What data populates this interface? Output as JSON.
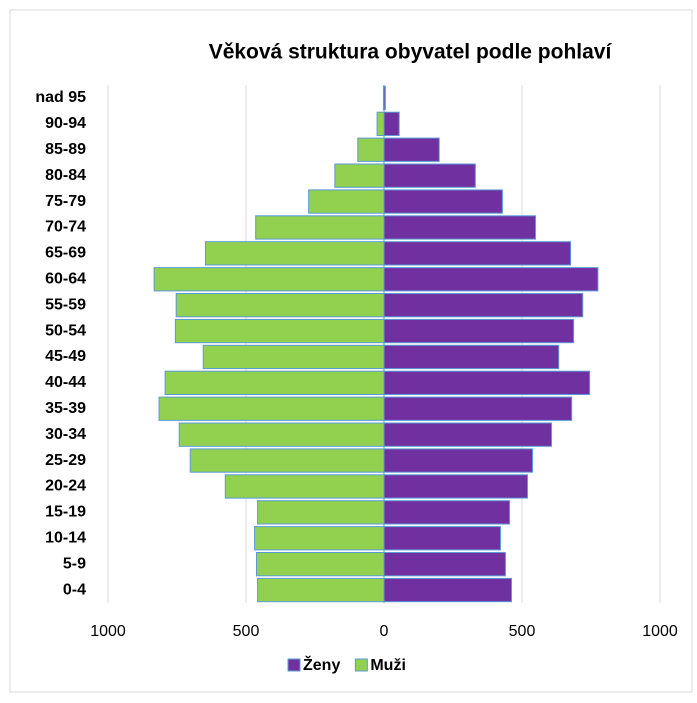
{
  "chart_data": {
    "type": "bar",
    "orientation": "horizontal",
    "title": "Věková struktura obyvatel podle pohlaví",
    "categories": [
      "0-4",
      "5-9",
      "10-14",
      "15-19",
      "20-24",
      "25-29",
      "30-34",
      "35-39",
      "40-44",
      "45-49",
      "50-54",
      "55-59",
      "60-64",
      "65-69",
      "70-74",
      "75-79",
      "80-84",
      "85-89",
      "90-94",
      "nad 95"
    ],
    "series": [
      {
        "name": "Ženy",
        "color": "#7030a0",
        "values": [
          462,
          440,
          422,
          455,
          520,
          538,
          607,
          680,
          745,
          633,
          687,
          720,
          775,
          676,
          549,
          429,
          331,
          200,
          55,
          5
        ]
      },
      {
        "name": "Muži",
        "color": "#92d050",
        "values": [
          -458,
          -462,
          -469,
          -458,
          -575,
          -702,
          -742,
          -815,
          -793,
          -655,
          -756,
          -753,
          -833,
          -647,
          -465,
          -273,
          -178,
          -95,
          -25,
          -2
        ]
      }
    ],
    "xlim": [
      -1000,
      1000
    ],
    "xticks": [
      {
        "value": -1000,
        "label": "1000"
      },
      {
        "value": -500,
        "label": "500"
      },
      0,
      500,
      1000
    ],
    "grid": true,
    "legend": "bottom"
  }
}
